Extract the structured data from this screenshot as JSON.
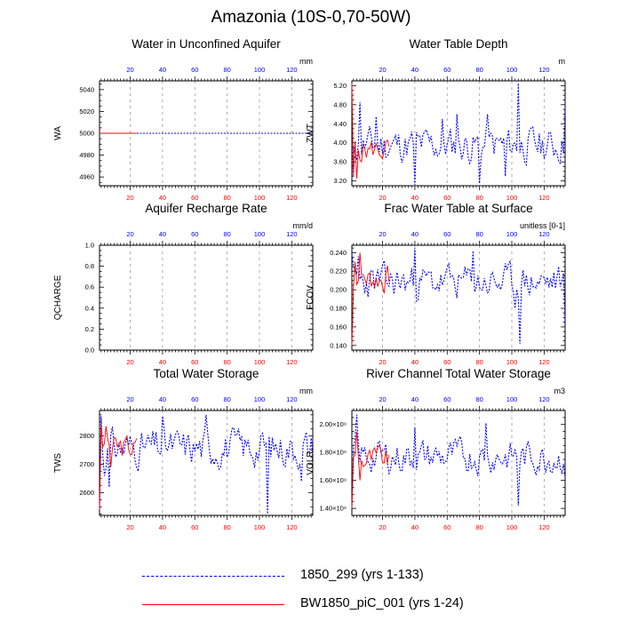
{
  "page": {
    "title": "Amazonia (10S-0,70-50W)"
  },
  "colors": {
    "case_a": "#0000ff",
    "case_b": "#ff0000",
    "frame": "#000000",
    "grid": "#9a9a9a",
    "background": "#ffffff"
  },
  "legend": [
    {
      "label": "1850_299 (yrs 1-133)",
      "style": "dashed",
      "color": "#0000ff"
    },
    {
      "label": "BW1850_piC_001 (yrs 1-24)",
      "style": "solid",
      "color": "#ff0000"
    }
  ],
  "chart_data": [
    {
      "type": "line",
      "title": "Water in Unconfined Aquifer",
      "units": "mm",
      "ylabel": "WA",
      "ylim": [
        4952,
        5048
      ],
      "yticks": [
        4960,
        4980,
        5000,
        5020,
        5040
      ],
      "ytick_labels": [
        "4960",
        "4980",
        "5000",
        "5020",
        "5040"
      ],
      "xlim_top": [
        1,
        133
      ],
      "xticks_top": [
        20,
        40,
        60,
        80,
        100,
        120
      ],
      "xlim_bottom": [
        1,
        133
      ],
      "xticks_bottom": [
        20,
        40,
        60,
        80,
        100,
        120
      ],
      "series": [
        {
          "name": "1850_299 (yrs 1-133)",
          "axis": "top",
          "dashed": true,
          "kind": "flat",
          "value": 5000,
          "n": 133
        },
        {
          "name": "BW1850_piC_001 (yrs 1-24)",
          "axis": "top",
          "dashed": false,
          "kind": "flat",
          "value": 5000,
          "n": 24
        }
      ]
    },
    {
      "type": "line",
      "title": "Water Table Depth",
      "units": "m",
      "ylabel": "ZWT",
      "ylim": [
        3.1,
        5.3
      ],
      "yticks": [
        3.2,
        3.6,
        4.0,
        4.4,
        4.8,
        5.2
      ],
      "ytick_labels": [
        "3.20",
        "3.60",
        "4.00",
        "4.40",
        "4.80",
        "5.20"
      ],
      "xlim_top": [
        1,
        133
      ],
      "xticks_top": [
        20,
        40,
        60,
        80,
        100,
        120
      ],
      "xlim_bottom": [
        1,
        133
      ],
      "xticks_bottom": [
        20,
        40,
        60,
        80,
        100,
        120
      ],
      "series": [
        {
          "name": "1850_299 (yrs 1-133)",
          "axis": "top",
          "dashed": true,
          "kind": "noise",
          "n": 133,
          "mean": 3.95,
          "amp": 0.32,
          "seed": 11,
          "start": 3.25,
          "spikes": [
            [
              6,
              4.85
            ],
            [
              16,
              4.55
            ],
            [
              40,
              3.12
            ],
            [
              57,
              4.5
            ],
            [
              66,
              4.6
            ],
            [
              80,
              3.15
            ],
            [
              85,
              4.6
            ],
            [
              96,
              3.3
            ],
            [
              104,
              5.25
            ],
            [
              133,
              4.75
            ]
          ]
        },
        {
          "name": "BW1850_piC_001 (yrs 1-24)",
          "axis": "bottom",
          "dashed": false,
          "kind": "noise",
          "n": 24,
          "mean": 3.85,
          "amp": 0.22,
          "seed": 5,
          "start": 5.25,
          "spikes": [
            [
              2,
              3.3
            ],
            [
              4,
              3.25
            ]
          ]
        }
      ]
    },
    {
      "type": "line",
      "title": "Aquifer Recharge Rate",
      "units": "mm/d",
      "ylabel": "QCHARGE",
      "ylim": [
        0,
        1
      ],
      "yticks": [
        0,
        0.2,
        0.4,
        0.6,
        0.8,
        1.0
      ],
      "ytick_labels": [
        "0.0",
        "0.2",
        "0.4",
        "0.6",
        "0.8",
        "1.0"
      ],
      "xlim_top": [
        1,
        133
      ],
      "xticks_top": [
        20,
        40,
        60,
        80,
        100,
        120
      ],
      "xlim_bottom": [
        1,
        133
      ],
      "xticks_bottom": [
        20,
        40,
        60,
        80,
        100,
        120
      ],
      "series": []
    },
    {
      "type": "line",
      "title": "Frac Water Table at Surface",
      "units": "unitless [0-1]",
      "ylabel": "FCOV",
      "ylim": [
        0.135,
        0.248
      ],
      "yticks": [
        0.14,
        0.16,
        0.18,
        0.2,
        0.22,
        0.24
      ],
      "ytick_labels": [
        "0.140",
        "0.160",
        "0.180",
        "0.200",
        "0.220",
        "0.240"
      ],
      "xlim_top": [
        1,
        133
      ],
      "xticks_top": [
        20,
        40,
        60,
        80,
        100,
        120
      ],
      "xlim_bottom": [
        1,
        133
      ],
      "xticks_bottom": [
        20,
        40,
        60,
        80,
        100,
        120
      ],
      "series": [
        {
          "name": "1850_299 (yrs 1-133)",
          "axis": "top",
          "dashed": true,
          "kind": "noise",
          "n": 133,
          "mean": 0.208,
          "amp": 0.016,
          "seed": 23,
          "start": 0.238,
          "spikes": [
            [
              5,
              0.236
            ],
            [
              40,
              0.245
            ],
            [
              76,
              0.242
            ],
            [
              102,
              0.18
            ],
            [
              105,
              0.142
            ],
            [
              133,
              0.163
            ]
          ]
        },
        {
          "name": "BW1850_piC_001 (yrs 1-24)",
          "axis": "bottom",
          "dashed": false,
          "kind": "noise",
          "n": 24,
          "mean": 0.212,
          "amp": 0.013,
          "seed": 7,
          "start": 0.14,
          "spikes": [
            [
              3,
              0.23
            ],
            [
              6,
              0.24
            ]
          ]
        }
      ]
    },
    {
      "type": "line",
      "title": "Total Water Storage",
      "units": "mm",
      "ylabel": "TWS",
      "ylim": [
        2520,
        2890
      ],
      "yticks": [
        2600,
        2700,
        2800
      ],
      "ytick_labels": [
        "2600",
        "2700",
        "2800"
      ],
      "xlim_top": [
        1,
        133
      ],
      "xticks_top": [
        20,
        40,
        60,
        80,
        100,
        120
      ],
      "xlim_bottom": [
        1,
        133
      ],
      "xticks_bottom": [
        20,
        40,
        60,
        80,
        100,
        120
      ],
      "series": [
        {
          "name": "1850_299 (yrs 1-133)",
          "axis": "top",
          "dashed": true,
          "kind": "noise",
          "n": 133,
          "mean": 2760,
          "amp": 55,
          "seed": 31,
          "start": 2540,
          "spikes": [
            [
              2,
              2870
            ],
            [
              4,
              2660
            ],
            [
              7,
              2620
            ],
            [
              40,
              2870
            ],
            [
              67,
              2875
            ],
            [
              105,
              2525
            ],
            [
              126,
              2640
            ],
            [
              133,
              2720
            ]
          ]
        },
        {
          "name": "BW1850_piC_001 (yrs 1-24)",
          "axis": "bottom",
          "dashed": false,
          "kind": "noise",
          "n": 24,
          "mean": 2760,
          "amp": 40,
          "seed": 3,
          "start": 2540,
          "spikes": [
            [
              2,
              2840
            ],
            [
              5,
              2835
            ],
            [
              8,
              2690
            ]
          ]
        }
      ]
    },
    {
      "type": "line",
      "title": "River Channel Total Water Storage",
      "units": "m3",
      "ylabel": "VOLR",
      "ylim": [
        1.35,
        2.1
      ],
      "yticks": [
        1.4,
        1.6,
        1.8,
        2.0
      ],
      "ytick_labels": [
        "1.40×10⁹",
        "1.60×10⁹",
        "1.80×10⁹",
        "2.00×10⁹"
      ],
      "xlim_top": [
        1,
        133
      ],
      "xticks_top": [
        20,
        40,
        60,
        80,
        100,
        120
      ],
      "xlim_bottom": [
        1,
        133
      ],
      "xticks_bottom": [
        20,
        40,
        60,
        80,
        100,
        120
      ],
      "series": [
        {
          "name": "1850_299 (yrs 1-133)",
          "axis": "top",
          "dashed": true,
          "kind": "noise",
          "n": 133,
          "mean": 1.77,
          "amp": 0.1,
          "seed": 43,
          "start": 1.4,
          "spikes": [
            [
              4,
              2.07
            ],
            [
              40,
              1.98
            ],
            [
              84,
              2.01
            ],
            [
              104,
              1.42
            ],
            [
              133,
              1.62
            ]
          ]
        },
        {
          "name": "BW1850_piC_001 (yrs 1-24)",
          "axis": "bottom",
          "dashed": false,
          "kind": "noise",
          "n": 24,
          "mean": 1.75,
          "amp": 0.08,
          "seed": 9,
          "start": 1.4,
          "spikes": [
            [
              4,
              1.95
            ],
            [
              6,
              1.6
            ]
          ]
        }
      ]
    }
  ]
}
